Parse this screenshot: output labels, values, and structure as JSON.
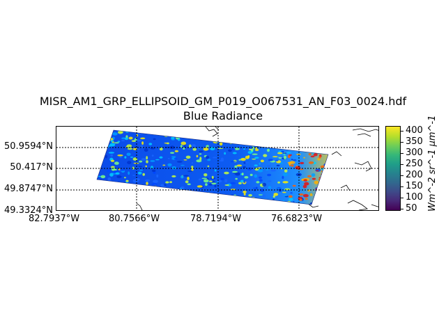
{
  "title_line1": "MISR_AM1_GRP_ELLIPSOID_GM_P019_O067531_AN_F03_0024.hdf",
  "title_line2": "Blue Radiance",
  "lat_labels": [
    "50.9594°N",
    "50.417°N",
    "49.8747°N",
    "49.3324°N"
  ],
  "lon_labels": [
    "82.7937°W",
    "80.7566°W",
    "78.7194°W",
    "76.6823°W"
  ],
  "colorbar": {
    "ticks": [
      "400",
      "350",
      "300",
      "250",
      "200",
      "150",
      "100",
      "50"
    ],
    "unit": "Wm^-2 sr^-1 μm^-1",
    "range": [
      40,
      425
    ],
    "colormap": "viridis"
  },
  "swath_colormap": "jet",
  "gridlines": "dotted"
}
